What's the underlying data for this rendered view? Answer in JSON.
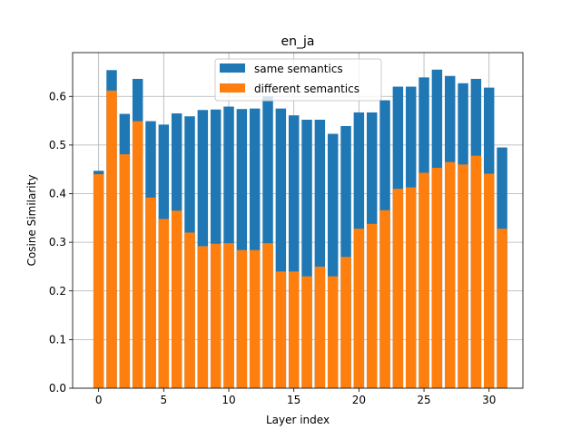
{
  "chart_data": {
    "type": "bar",
    "title": "en_ja",
    "xlabel": "Layer index",
    "ylabel": "Cosine Similarity",
    "xlim": [
      -2.0,
      32.6
    ],
    "ylim": [
      0.0,
      0.69
    ],
    "x_ticks": [
      0,
      5,
      10,
      15,
      20,
      25,
      30
    ],
    "y_ticks": [
      0.0,
      0.1,
      0.2,
      0.3,
      0.4,
      0.5,
      0.6
    ],
    "y_tick_labels": [
      "0.0",
      "0.1",
      "0.2",
      "0.3",
      "0.4",
      "0.5",
      "0.6"
    ],
    "grid": true,
    "legend_position": "upper-center",
    "x": [
      0,
      1,
      2,
      3,
      4,
      5,
      6,
      7,
      8,
      9,
      10,
      11,
      12,
      13,
      14,
      15,
      16,
      17,
      18,
      19,
      20,
      21,
      22,
      23,
      24,
      25,
      26,
      27,
      28,
      29,
      30,
      31
    ],
    "series": [
      {
        "name": "same semantics",
        "color": "#1f77b4",
        "values": [
          0.447,
          0.654,
          0.564,
          0.636,
          0.549,
          0.542,
          0.565,
          0.559,
          0.572,
          0.573,
          0.579,
          0.574,
          0.575,
          0.6,
          0.575,
          0.561,
          0.552,
          0.552,
          0.523,
          0.539,
          0.567,
          0.567,
          0.592,
          0.62,
          0.62,
          0.639,
          0.655,
          0.642,
          0.627,
          0.636,
          0.618,
          0.495
        ]
      },
      {
        "name": "different semantics",
        "color": "#ff7f0e",
        "values": [
          0.44,
          0.612,
          0.481,
          0.549,
          0.392,
          0.348,
          0.365,
          0.32,
          0.292,
          0.297,
          0.298,
          0.284,
          0.284,
          0.298,
          0.24,
          0.24,
          0.23,
          0.25,
          0.23,
          0.27,
          0.328,
          0.338,
          0.366,
          0.41,
          0.413,
          0.443,
          0.453,
          0.465,
          0.46,
          0.478,
          0.441,
          0.328
        ]
      }
    ]
  }
}
